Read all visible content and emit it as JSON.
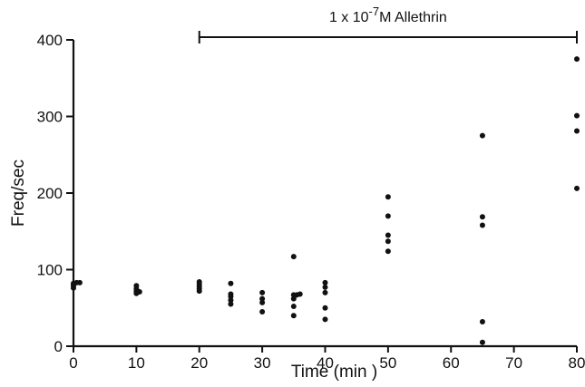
{
  "chart_data": {
    "type": "scatter",
    "title": "",
    "xlabel": "Time (min )",
    "ylabel": "Freq/sec",
    "xlim": [
      0,
      80
    ],
    "ylim": [
      0,
      400
    ],
    "xticks": [
      0,
      10,
      20,
      30,
      40,
      50,
      60,
      70,
      80
    ],
    "yticks": [
      0,
      100,
      200,
      300,
      400
    ],
    "grid": false,
    "annotation": {
      "text_prefix": "1 x 10",
      "text_exponent": "-7",
      "text_suffix": "M Allethrin",
      "x_start": 20,
      "x_end": 80
    },
    "points": [
      {
        "x": 0,
        "y": 76
      },
      {
        "x": 0,
        "y": 79
      },
      {
        "x": 0,
        "y": 81
      },
      {
        "x": 0,
        "y": 82
      },
      {
        "x": 0.5,
        "y": 83
      },
      {
        "x": 1,
        "y": 83
      },
      {
        "x": 10,
        "y": 69
      },
      {
        "x": 10,
        "y": 72
      },
      {
        "x": 10,
        "y": 75
      },
      {
        "x": 10,
        "y": 79
      },
      {
        "x": 10.5,
        "y": 71
      },
      {
        "x": 20,
        "y": 72
      },
      {
        "x": 20,
        "y": 75
      },
      {
        "x": 20,
        "y": 78
      },
      {
        "x": 20,
        "y": 81
      },
      {
        "x": 20,
        "y": 84
      },
      {
        "x": 25,
        "y": 55
      },
      {
        "x": 25,
        "y": 60
      },
      {
        "x": 25,
        "y": 65
      },
      {
        "x": 25,
        "y": 68
      },
      {
        "x": 25,
        "y": 82
      },
      {
        "x": 30,
        "y": 45
      },
      {
        "x": 30,
        "y": 57
      },
      {
        "x": 30,
        "y": 62
      },
      {
        "x": 30,
        "y": 70
      },
      {
        "x": 35,
        "y": 40
      },
      {
        "x": 35,
        "y": 52
      },
      {
        "x": 35,
        "y": 62
      },
      {
        "x": 35,
        "y": 67
      },
      {
        "x": 35.5,
        "y": 67
      },
      {
        "x": 36,
        "y": 68
      },
      {
        "x": 35,
        "y": 117
      },
      {
        "x": 40,
        "y": 35
      },
      {
        "x": 40,
        "y": 50
      },
      {
        "x": 40,
        "y": 70
      },
      {
        "x": 40,
        "y": 77
      },
      {
        "x": 40,
        "y": 83
      },
      {
        "x": 50,
        "y": 124
      },
      {
        "x": 50,
        "y": 137
      },
      {
        "x": 50,
        "y": 145
      },
      {
        "x": 50,
        "y": 170
      },
      {
        "x": 50,
        "y": 195
      },
      {
        "x": 65,
        "y": 5
      },
      {
        "x": 65,
        "y": 32
      },
      {
        "x": 65,
        "y": 158
      },
      {
        "x": 65,
        "y": 169
      },
      {
        "x": 65,
        "y": 275
      },
      {
        "x": 80,
        "y": 206
      },
      {
        "x": 80,
        "y": 281
      },
      {
        "x": 80,
        "y": 301
      },
      {
        "x": 80,
        "y": 375
      }
    ]
  }
}
